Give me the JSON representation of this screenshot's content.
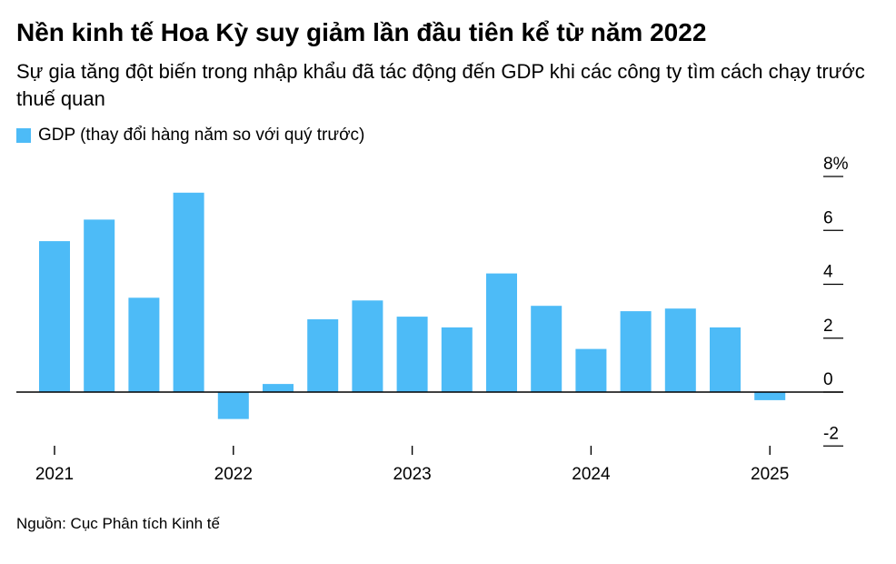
{
  "title": "Nền kinh tế Hoa Kỳ suy giảm lần đầu tiên kể từ năm 2022",
  "subtitle": "Sự gia tăng đột biến trong nhập khẩu đã tác động đến GDP khi các công ty tìm cách chạy trước thuế quan",
  "source": "Nguồn: Cục Phân tích Kinh tế",
  "colors": {
    "bar": "#4dbbf7",
    "axis": "#000000"
  },
  "chart_data": {
    "type": "bar",
    "title": "Nền kinh tế Hoa Kỳ suy giảm lần đầu tiên kể từ năm 2022",
    "subtitle": "Sự gia tăng đột biến trong nhập khẩu đã tác động đến GDP khi các công ty tìm cách chạy trước thuế quan",
    "xlabel": "",
    "ylabel": "",
    "categories": [
      "2021 Q1",
      "2021 Q2",
      "2021 Q3",
      "2021 Q4",
      "2022 Q1",
      "2022 Q2",
      "2022 Q3",
      "2022 Q4",
      "2023 Q1",
      "2023 Q2",
      "2023 Q3",
      "2023 Q4",
      "2024 Q1",
      "2024 Q2",
      "2024 Q3",
      "2024 Q4",
      "2025 Q1"
    ],
    "series": [
      {
        "name": "GDP (thay đổi hàng năm so với quý trước)",
        "values": [
          5.6,
          6.4,
          3.5,
          7.4,
          -1.0,
          0.3,
          2.7,
          3.4,
          2.8,
          2.4,
          4.4,
          3.2,
          1.6,
          3.0,
          3.1,
          2.4,
          -0.3
        ]
      }
    ],
    "ylim": [
      -2,
      8
    ],
    "yticks": [
      8,
      6,
      4,
      2,
      0,
      -2
    ],
    "ytick_labels": [
      "8%",
      "6",
      "4",
      "2",
      "0",
      "-2"
    ],
    "xticks": [
      "2021",
      "2022",
      "2023",
      "2024",
      "2025"
    ],
    "grid": false,
    "legend": "top-left"
  }
}
